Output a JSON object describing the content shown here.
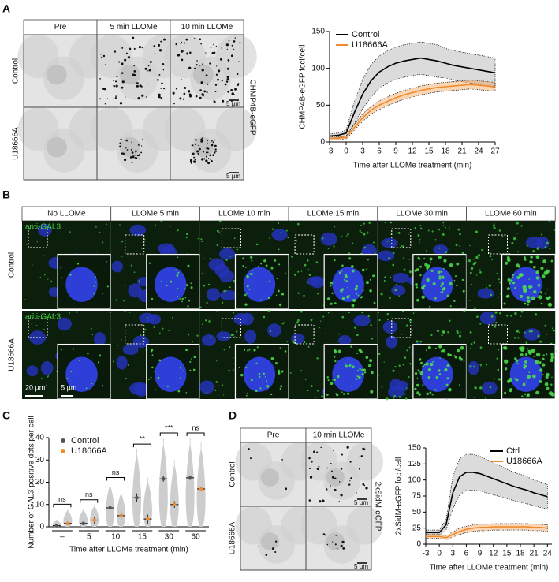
{
  "panel_labels": [
    "A",
    "B",
    "C",
    "D"
  ],
  "figure_a": {
    "columns": [
      "Pre",
      "5 min LLOMe",
      "10 min LLOMe"
    ],
    "rows": [
      "Control",
      "U18666A"
    ],
    "channel": "CHMP4B-eGFP",
    "scale_bar": "5 µm"
  },
  "figure_b": {
    "columns": [
      "No LLOMe",
      "LLOMe 5 min",
      "LLOMe 10 min",
      "LLOMe 15 min",
      "LLOMe 30 min",
      "LLOMe 60 min"
    ],
    "rows": [
      "Control",
      "U18666A"
    ],
    "stain": "anti-GAL3",
    "scale_bars": [
      "20 µm",
      "5 µm"
    ]
  },
  "figure_d": {
    "columns": [
      "Pre",
      "10 min LLOMe"
    ],
    "rows": [
      "Control",
      "U18666A"
    ],
    "channel": "2xSidM-eGFP",
    "scale_bar": "5 µm"
  },
  "chart_data": [
    {
      "type": "line",
      "ylabel": "CHMP4B-eGFP foci/cell",
      "xlabel": "Time after LLOMe treatment (min)",
      "x": [
        -3,
        -1.5,
        0,
        1.5,
        3,
        4.5,
        6,
        7.5,
        9,
        10.5,
        12,
        13.5,
        15,
        16.5,
        18,
        19.5,
        21,
        22.5,
        24,
        25.5,
        27
      ],
      "xlim": [
        -3,
        27
      ],
      "xticks": [
        -3,
        0,
        3,
        6,
        9,
        12,
        15,
        18,
        21,
        24,
        27
      ],
      "ylim": [
        0,
        150
      ],
      "yticks": [
        0,
        50,
        100,
        150
      ],
      "legend": "upper left",
      "series": [
        {
          "name": "Control",
          "color": "#000000",
          "values": [
            8,
            9,
            12,
            40,
            65,
            83,
            95,
            102,
            107,
            110,
            112,
            114,
            112,
            110,
            107,
            104,
            102,
            100,
            98,
            96,
            94
          ],
          "errors": [
            3,
            3,
            4,
            15,
            20,
            22,
            22,
            22,
            22,
            22,
            22,
            22,
            22,
            22,
            20,
            20,
            20,
            20,
            20,
            20,
            20
          ]
        },
        {
          "name": "U18666A",
          "color": "#f08a2c",
          "values": [
            5,
            5,
            6,
            20,
            33,
            43,
            50,
            55,
            60,
            64,
            67,
            70,
            72,
            74,
            75,
            76,
            77,
            78,
            77,
            76,
            75
          ],
          "errors": [
            2,
            2,
            2,
            4,
            5,
            5,
            6,
            6,
            6,
            6,
            6,
            6,
            6,
            6,
            6,
            6,
            6,
            6,
            6,
            6,
            6
          ]
        }
      ]
    },
    {
      "type": "violin",
      "ylabel": "Number of GAL3 positive dots per cell",
      "xlabel": "Time after LLOMe treatment (min)",
      "categories": [
        "–",
        "5",
        "10",
        "15",
        "30",
        "60"
      ],
      "ylim": [
        0,
        40
      ],
      "yticks": [
        0,
        10,
        20,
        30,
        40
      ],
      "legend": "upper left",
      "series": [
        {
          "name": "Control",
          "color": "#555555",
          "values": [
            0.5,
            1.5,
            8.5,
            13,
            21.5,
            22
          ],
          "errors": [
            0.3,
            0.5,
            0.8,
            2,
            1.2,
            1
          ],
          "max": [
            3,
            8,
            20,
            35,
            40,
            40
          ]
        },
        {
          "name": "U18666A",
          "color": "#f08a2c",
          "values": [
            1.5,
            3,
            5,
            3.5,
            10,
            17
          ],
          "errors": [
            0.8,
            1.5,
            2,
            2,
            1.5,
            1
          ],
          "max": [
            8,
            10,
            16,
            22,
            30,
            38
          ]
        }
      ],
      "significance": [
        "ns",
        "ns",
        "ns",
        "**",
        "***",
        "ns"
      ]
    },
    {
      "type": "line",
      "ylabel": "2xSidM-eGFP foci/cell",
      "xlabel": "Time after LLOMe treatment (min)",
      "x": [
        -3,
        -1.5,
        0,
        1.5,
        3,
        4.5,
        6,
        7.5,
        9,
        10.5,
        12,
        13.5,
        15,
        16.5,
        18,
        19.5,
        21,
        22.5,
        24
      ],
      "xlim": [
        -3,
        25
      ],
      "xticks": [
        -3,
        0,
        3,
        6,
        9,
        12,
        15,
        18,
        21,
        24
      ],
      "ylim": [
        0,
        150
      ],
      "yticks": [
        0,
        25,
        50,
        75,
        100,
        125,
        150
      ],
      "legend": "upper right",
      "series": [
        {
          "name": "Ctrl",
          "color": "#000000",
          "values": [
            18,
            18,
            18,
            30,
            80,
            105,
            112,
            112,
            110,
            106,
            102,
            98,
            94,
            90,
            87,
            84,
            80,
            77,
            74
          ],
          "errors": [
            4,
            4,
            4,
            8,
            25,
            28,
            28,
            28,
            27,
            26,
            25,
            24,
            23,
            22,
            22,
            21,
            20,
            20,
            19
          ]
        },
        {
          "name": "U18666A",
          "color": "#f08a2c",
          "values": [
            12,
            12,
            12,
            10,
            15,
            20,
            23,
            25,
            26,
            26,
            27,
            27,
            27,
            27,
            27,
            27,
            26,
            26,
            25
          ],
          "errors": [
            3,
            3,
            3,
            3,
            4,
            5,
            5,
            5,
            5,
            5,
            5,
            5,
            5,
            5,
            5,
            5,
            5,
            5,
            5
          ]
        }
      ]
    }
  ]
}
